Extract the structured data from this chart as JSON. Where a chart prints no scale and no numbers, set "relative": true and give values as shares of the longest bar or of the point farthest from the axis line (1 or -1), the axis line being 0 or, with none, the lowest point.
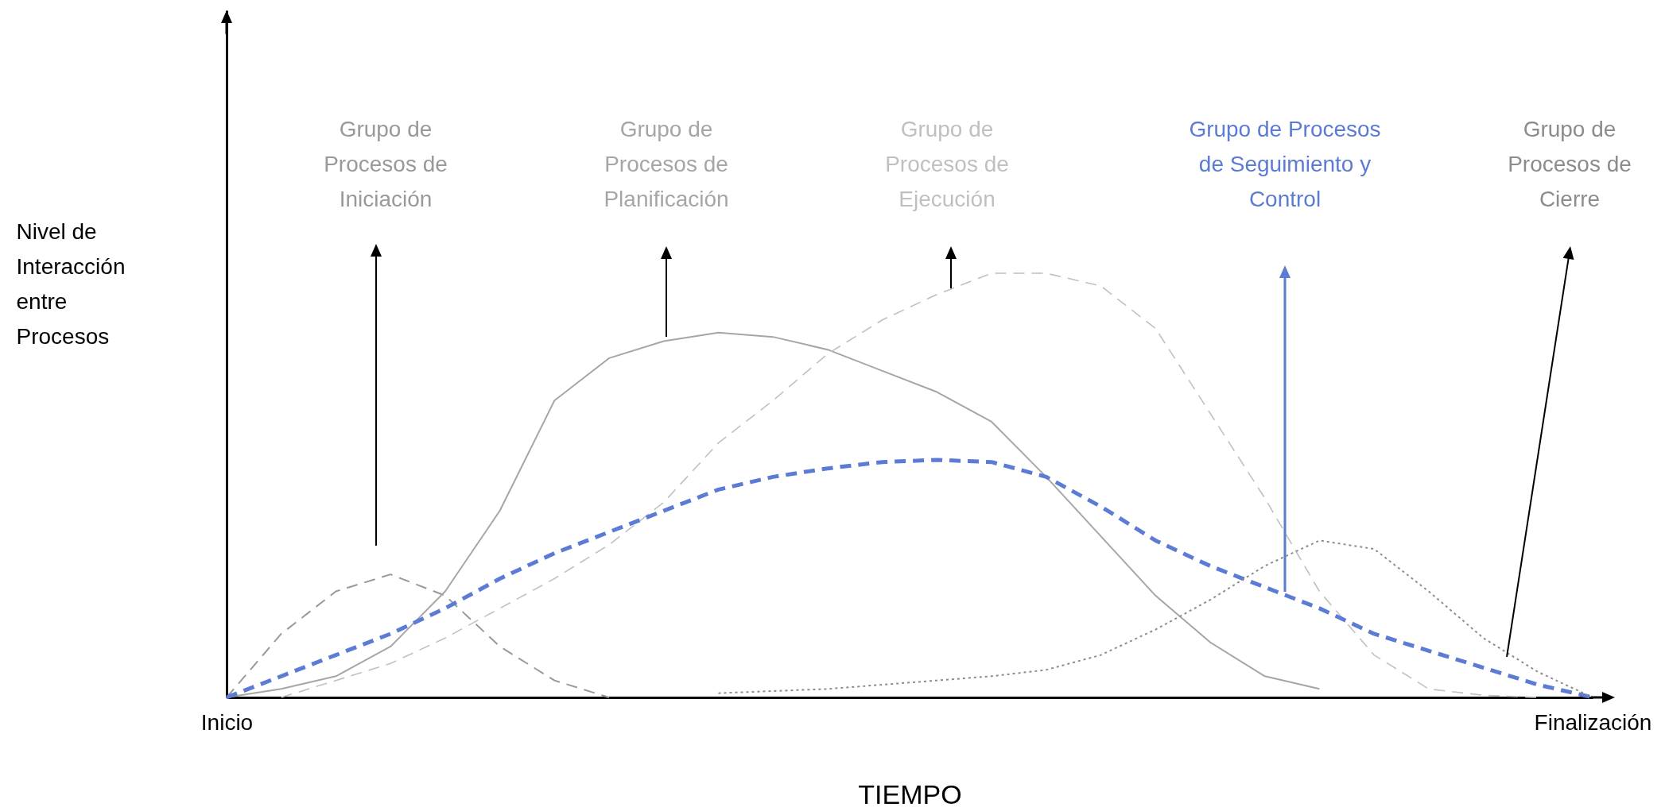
{
  "chart_data": {
    "type": "line",
    "relative": true,
    "xlabel": "TIEMPO",
    "ylabel": "Nivel de Interacción entre Procesos",
    "categories": [
      "Inicio",
      null,
      null,
      null,
      null,
      null,
      null,
      null,
      null,
      null,
      null,
      null,
      null,
      null,
      null,
      null,
      null,
      null,
      null,
      null,
      null,
      null,
      null,
      null,
      null,
      "Finalización"
    ],
    "grid": false,
    "marker": "none",
    "series": [
      {
        "name": "Grupo de Procesos de Iniciación",
        "color": "#999999",
        "line_style": "dashed",
        "values": [
          0,
          0.15,
          0.25,
          0.29,
          0.24,
          0.12,
          0.04,
          0,
          null,
          null,
          null,
          null,
          null,
          null,
          null,
          null,
          null,
          null,
          null,
          null,
          null,
          null,
          null,
          null,
          null,
          null
        ]
      },
      {
        "name": "Grupo de Procesos de Planificación",
        "color": "#a6a6a6",
        "line_style": "solid",
        "values": [
          0,
          0.02,
          0.05,
          0.12,
          0.25,
          0.44,
          0.7,
          0.8,
          0.84,
          0.86,
          0.85,
          0.82,
          0.77,
          0.72,
          0.65,
          0.52,
          0.38,
          0.24,
          0.13,
          0.05,
          0.02,
          null,
          null,
          null,
          null,
          null
        ]
      },
      {
        "name": "Grupo de Procesos de Ejecución",
        "color": "#c0c0c0",
        "line_style": "dashed",
        "values": [
          null,
          0,
          0.04,
          0.08,
          0.14,
          0.21,
          0.28,
          0.36,
          0.46,
          0.6,
          0.7,
          0.81,
          0.89,
          0.95,
          1,
          1,
          0.97,
          0.87,
          0.67,
          0.47,
          0.25,
          0.1,
          0.02,
          0.005,
          0,
          null
        ]
      },
      {
        "name": "Grupo de Procesos de Seguimiento y Control",
        "color": "#5b7bd5",
        "line_style": "dashed",
        "values": [
          0,
          0.05,
          0.1,
          0.15,
          0.21,
          0.28,
          0.34,
          0.39,
          0.44,
          0.49,
          0.52,
          0.54,
          0.555,
          0.56,
          0.555,
          0.52,
          0.45,
          0.37,
          0.31,
          0.26,
          0.21,
          0.15,
          0.11,
          0.07,
          0.03,
          0
        ]
      },
      {
        "name": "Grupo de Procesos de Cierre",
        "color": "#8c8c8c",
        "line_style": "dotted",
        "values": [
          null,
          null,
          null,
          null,
          null,
          null,
          null,
          null,
          null,
          0.01,
          0.015,
          0.02,
          0.03,
          0.04,
          0.05,
          0.065,
          0.1,
          0.16,
          0.23,
          0.31,
          0.37,
          0.35,
          0.25,
          0.14,
          0.06,
          0
        ]
      }
    ]
  }
}
